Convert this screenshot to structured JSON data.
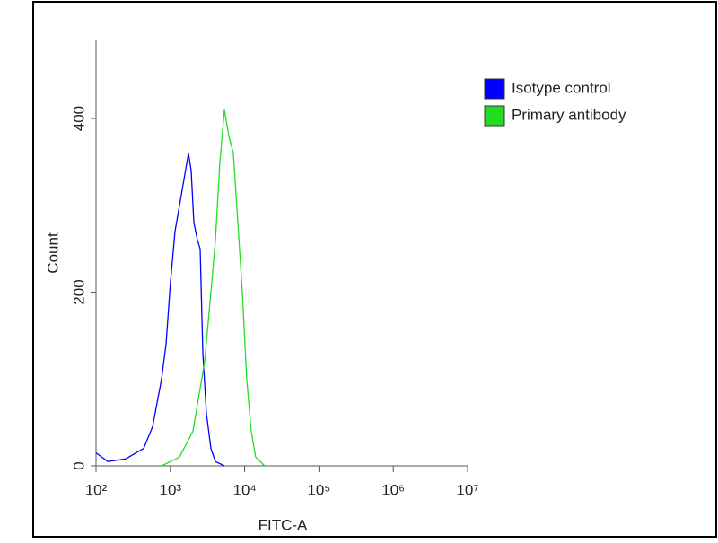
{
  "chart_data": {
    "type": "line",
    "x_label": "FITC-A",
    "y_label": "Count",
    "xscale": "log",
    "xlim": [
      100,
      10000000
    ],
    "ylim": [
      0,
      490
    ],
    "xticks": [
      {
        "value": 100,
        "label": "10²"
      },
      {
        "value": 1000,
        "label": "10³"
      },
      {
        "value": 10000,
        "label": "10⁴"
      },
      {
        "value": 100000,
        "label": "10⁵"
      },
      {
        "value": 1000000,
        "label": "10⁶"
      },
      {
        "value": 10000000,
        "label": "10⁷"
      }
    ],
    "yticks": [
      0,
      200,
      400
    ],
    "legend": "right",
    "grid": false,
    "series": [
      {
        "name": "Isotype control",
        "color": "#0000ff",
        "x": [
          100,
          144,
          250,
          437,
          577,
          762,
          875,
          1000,
          1156,
          1328,
          1527,
          1755,
          1906,
          2072,
          2316,
          2518,
          2736,
          3060,
          3516,
          4040,
          5333
        ],
        "values": [
          15,
          5,
          8,
          20,
          45,
          100,
          140,
          210,
          270,
          300,
          330,
          360,
          340,
          280,
          260,
          250,
          130,
          60,
          20,
          5,
          0
        ]
      },
      {
        "name": "Primary antibody",
        "color": "#22dd22",
        "x": [
          762,
          1328,
          2014,
          2894,
          3516,
          4040,
          4642,
          5333,
          6127,
          7040,
          8088,
          9292,
          10675,
          12265,
          14090,
          18600
        ],
        "values": [
          0,
          10,
          40,
          120,
          200,
          260,
          350,
          410,
          380,
          360,
          280,
          200,
          100,
          40,
          10,
          0
        ]
      }
    ]
  }
}
